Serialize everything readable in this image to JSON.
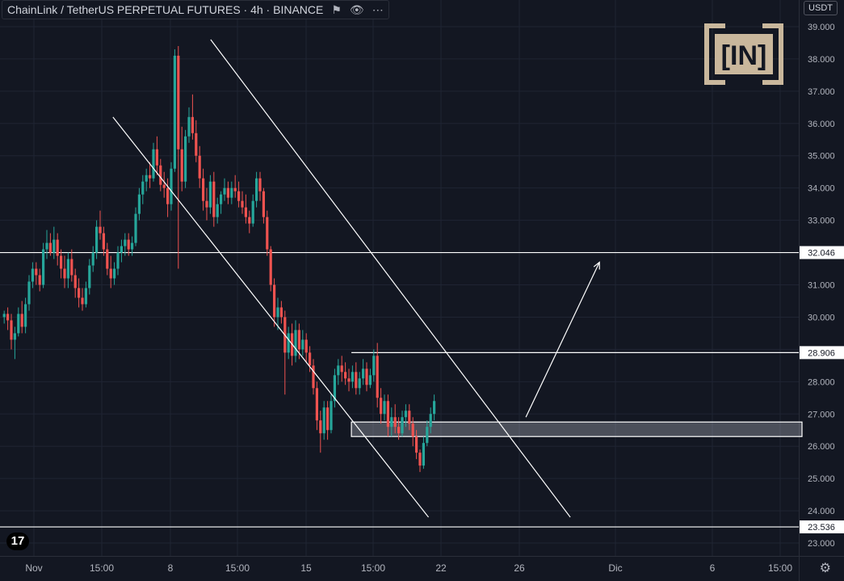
{
  "header": {
    "title": "ChainLink / TetherUS PERPETUAL FUTURES · 4h · BINANCE",
    "icons": [
      "flag-icon",
      "eye-icon",
      "more-icon"
    ]
  },
  "currency_label": "USDT",
  "logo_text": "[IN]",
  "tv_logo_text": "17",
  "chart_data": {
    "type": "candlestick",
    "x_ticks": [
      "Nov",
      "15:00",
      "8",
      "15:00",
      "15",
      "15:00",
      "22",
      "26",
      "Dic",
      "6",
      "15:00"
    ],
    "y_ticks": [
      "23.000",
      "24.000",
      "25.000",
      "26.000",
      "27.000",
      "28.000",
      "29.000",
      "30.000",
      "31.000",
      "32.000",
      "33.000",
      "34.000",
      "35.000",
      "36.000",
      "37.000",
      "38.000",
      "39.000"
    ],
    "ylim": [
      22.8,
      39.2
    ],
    "colors": {
      "up": "#26a69a",
      "down": "#ef5350",
      "lines": "#ffffff",
      "background": "#131722",
      "zone_fill": "#b4b8c2"
    },
    "candles": [
      [
        30.0,
        30.2,
        29.8,
        30.1
      ],
      [
        30.1,
        30.3,
        29.6,
        29.9
      ],
      [
        29.9,
        30.1,
        29.0,
        29.3
      ],
      [
        29.3,
        29.7,
        28.7,
        29.5
      ],
      [
        29.5,
        30.3,
        29.4,
        30.1
      ],
      [
        30.1,
        30.5,
        29.5,
        29.7
      ],
      [
        29.7,
        30.6,
        29.5,
        30.4
      ],
      [
        30.4,
        31.3,
        30.2,
        31.1
      ],
      [
        31.1,
        31.7,
        30.9,
        31.5
      ],
      [
        31.5,
        31.7,
        31.0,
        31.3
      ],
      [
        31.3,
        31.5,
        30.8,
        31.0
      ],
      [
        31.0,
        32.3,
        30.9,
        32.1
      ],
      [
        32.1,
        32.7,
        31.8,
        32.3
      ],
      [
        32.3,
        32.6,
        31.9,
        32.0
      ],
      [
        32.0,
        32.8,
        31.8,
        32.4
      ],
      [
        32.4,
        32.6,
        31.6,
        31.9
      ],
      [
        31.9,
        32.1,
        31.2,
        31.5
      ],
      [
        31.5,
        31.9,
        30.9,
        31.2
      ],
      [
        31.2,
        32.0,
        30.9,
        31.8
      ],
      [
        31.8,
        32.1,
        31.1,
        31.3
      ],
      [
        31.3,
        31.5,
        30.6,
        30.9
      ],
      [
        30.9,
        31.2,
        30.3,
        30.6
      ],
      [
        30.6,
        30.9,
        30.2,
        30.4
      ],
      [
        30.4,
        31.1,
        30.3,
        30.9
      ],
      [
        30.9,
        31.8,
        30.7,
        31.6
      ],
      [
        31.6,
        32.2,
        31.4,
        32.0
      ],
      [
        32.0,
        33.0,
        31.8,
        32.8
      ],
      [
        32.8,
        33.3,
        32.4,
        32.6
      ],
      [
        32.6,
        32.8,
        31.9,
        32.1
      ],
      [
        32.1,
        32.3,
        31.3,
        31.5
      ],
      [
        31.5,
        31.9,
        30.9,
        31.2
      ],
      [
        31.2,
        31.7,
        31.0,
        31.5
      ],
      [
        31.5,
        32.2,
        31.3,
        32.0
      ],
      [
        32.0,
        32.4,
        31.7,
        32.2
      ],
      [
        32.2,
        32.6,
        31.9,
        32.4
      ],
      [
        32.4,
        32.6,
        31.9,
        32.1
      ],
      [
        32.1,
        32.5,
        31.9,
        32.3
      ],
      [
        32.3,
        33.4,
        32.2,
        33.2
      ],
      [
        33.2,
        34.0,
        33.0,
        33.8
      ],
      [
        33.8,
        34.4,
        33.5,
        34.2
      ],
      [
        34.2,
        34.6,
        33.9,
        34.4
      ],
      [
        34.4,
        34.8,
        34.0,
        34.3
      ],
      [
        34.3,
        35.4,
        34.2,
        35.2
      ],
      [
        35.2,
        35.6,
        34.4,
        34.7
      ],
      [
        34.7,
        34.9,
        33.9,
        34.1
      ],
      [
        34.1,
        34.5,
        33.7,
        34.0
      ],
      [
        34.0,
        34.3,
        33.1,
        33.5
      ],
      [
        33.5,
        34.8,
        33.3,
        34.6
      ],
      [
        34.6,
        38.3,
        34.5,
        38.1
      ],
      [
        38.1,
        38.4,
        31.5,
        35.2
      ],
      [
        35.2,
        35.9,
        33.9,
        34.2
      ],
      [
        34.2,
        35.8,
        34.0,
        35.6
      ],
      [
        35.6,
        36.5,
        35.4,
        36.2
      ],
      [
        36.2,
        36.9,
        35.5,
        35.7
      ],
      [
        35.7,
        36.1,
        34.8,
        35.0
      ],
      [
        35.0,
        35.3,
        34.0,
        34.3
      ],
      [
        34.3,
        34.6,
        33.3,
        33.6
      ],
      [
        33.6,
        34.0,
        33.0,
        33.4
      ],
      [
        33.4,
        34.4,
        33.2,
        34.2
      ],
      [
        34.2,
        34.5,
        32.8,
        33.1
      ],
      [
        33.1,
        33.7,
        32.9,
        33.5
      ],
      [
        33.5,
        33.9,
        33.2,
        33.8
      ],
      [
        33.8,
        34.3,
        33.6,
        34.0
      ],
      [
        34.0,
        34.2,
        33.5,
        33.7
      ],
      [
        33.7,
        34.2,
        33.5,
        34.0
      ],
      [
        34.0,
        34.4,
        33.7,
        33.9
      ],
      [
        33.9,
        34.2,
        33.4,
        33.6
      ],
      [
        33.6,
        33.9,
        33.2,
        33.4
      ],
      [
        33.4,
        33.8,
        32.9,
        33.1
      ],
      [
        33.1,
        33.3,
        32.6,
        32.9
      ],
      [
        32.9,
        33.8,
        32.8,
        33.6
      ],
      [
        33.6,
        34.5,
        33.4,
        34.3
      ],
      [
        34.3,
        34.5,
        33.6,
        33.9
      ],
      [
        33.9,
        34.0,
        32.9,
        33.1
      ],
      [
        33.1,
        33.3,
        31.9,
        32.1
      ],
      [
        32.1,
        32.2,
        30.8,
        31.0
      ],
      [
        31.0,
        31.2,
        29.7,
        30.0
      ],
      [
        30.0,
        30.6,
        29.6,
        30.3
      ],
      [
        30.3,
        30.5,
        29.8,
        30.0
      ],
      [
        30.0,
        30.2,
        27.6,
        28.9
      ],
      [
        28.9,
        29.7,
        28.7,
        29.5
      ],
      [
        29.5,
        29.8,
        28.5,
        28.8
      ],
      [
        28.8,
        29.9,
        28.6,
        29.6
      ],
      [
        29.6,
        29.8,
        28.7,
        29.0
      ],
      [
        29.0,
        29.6,
        28.8,
        29.3
      ],
      [
        29.3,
        29.5,
        28.6,
        28.9
      ],
      [
        28.9,
        29.1,
        28.3,
        28.5
      ],
      [
        28.5,
        28.7,
        27.6,
        27.8
      ],
      [
        27.8,
        28.0,
        26.5,
        26.8
      ],
      [
        26.8,
        27.1,
        25.8,
        26.4
      ],
      [
        26.4,
        27.4,
        26.2,
        27.2
      ],
      [
        27.2,
        27.4,
        26.2,
        26.5
      ],
      [
        26.5,
        27.6,
        26.4,
        27.4
      ],
      [
        27.4,
        28.4,
        27.2,
        28.2
      ],
      [
        28.2,
        28.7,
        27.9,
        28.5
      ],
      [
        28.5,
        28.8,
        28.0,
        28.3
      ],
      [
        28.3,
        28.6,
        27.9,
        28.1
      ],
      [
        28.1,
        28.4,
        27.7,
        28.0
      ],
      [
        28.0,
        28.5,
        27.8,
        28.3
      ],
      [
        28.3,
        28.6,
        27.6,
        27.8
      ],
      [
        27.8,
        28.3,
        27.6,
        28.1
      ],
      [
        28.1,
        28.7,
        27.9,
        28.4
      ],
      [
        28.4,
        28.6,
        27.7,
        27.9
      ],
      [
        27.9,
        28.4,
        27.8,
        28.2
      ],
      [
        28.2,
        29.0,
        28.0,
        28.8
      ],
      [
        28.8,
        29.2,
        27.2,
        27.5
      ],
      [
        27.5,
        27.8,
        26.7,
        27.0
      ],
      [
        27.0,
        27.6,
        26.8,
        27.4
      ],
      [
        27.4,
        27.6,
        26.3,
        26.6
      ],
      [
        26.6,
        27.2,
        26.3,
        26.9
      ],
      [
        26.9,
        27.3,
        26.4,
        26.6
      ],
      [
        26.6,
        26.9,
        26.2,
        26.4
      ],
      [
        26.4,
        27.1,
        26.3,
        26.9
      ],
      [
        26.9,
        27.3,
        26.6,
        27.1
      ],
      [
        27.1,
        27.3,
        26.5,
        26.7
      ],
      [
        26.7,
        26.9,
        26.0,
        26.3
      ],
      [
        26.3,
        26.5,
        25.6,
        25.8
      ],
      [
        25.8,
        25.9,
        25.2,
        25.4
      ],
      [
        25.4,
        26.3,
        25.3,
        26.1
      ],
      [
        26.1,
        26.8,
        26.0,
        26.6
      ],
      [
        26.6,
        27.2,
        26.4,
        27.0
      ],
      [
        27.0,
        27.6,
        26.8,
        27.4
      ]
    ],
    "candle_x": {
      "first": 3,
      "step": 4.4
    },
    "channel": {
      "upper": {
        "from": [
          58.1,
          38.6
        ],
        "to": [
          159.3,
          23.8
        ]
      },
      "lower": {
        "from": [
          30.6,
          36.2
        ],
        "to": [
          119.4,
          23.8
        ]
      }
    },
    "breakout_arrow": {
      "from": [
        146.8,
        26.9
      ],
      "to": [
        167.5,
        31.7
      ]
    },
    "zone": {
      "x0": 97.7,
      "x1": 224.5,
      "y0": 26.3,
      "y1": 26.75
    },
    "levels": [
      {
        "label": "32.046",
        "value": 32.0
      },
      {
        "label": "28.906",
        "value": 28.9,
        "x0": 97.7
      },
      {
        "label": "23.536",
        "value": 23.5
      }
    ]
  }
}
